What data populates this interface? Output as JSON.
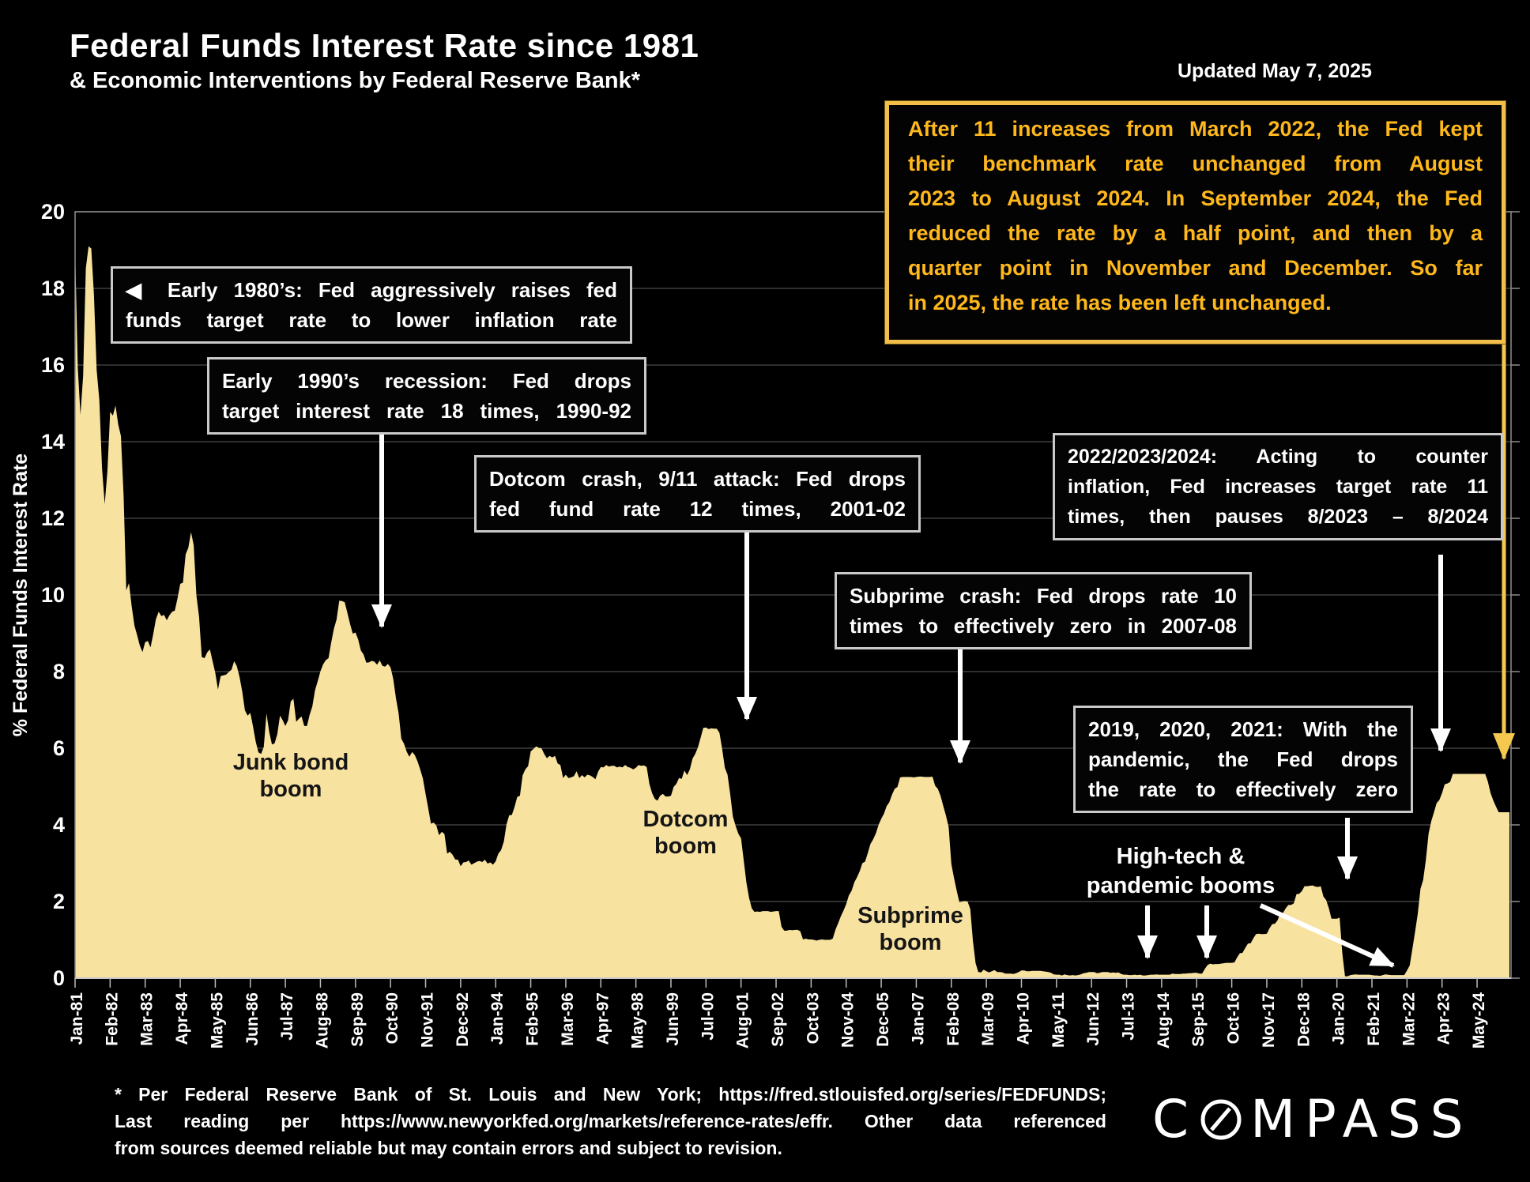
{
  "header": {
    "title": "Federal Funds Interest Rate since 1981",
    "subtitle": "& Economic Interventions by Federal Reserve Bank*",
    "updated": "Updated May 7, 2025"
  },
  "callout": {
    "lines": [
      "After 11 increases from March 2022, the Fed kept",
      "their benchmark rate unchanged from August",
      "2023 to August 2024. In September 2024, the Fed",
      "reduced the rate by a half point, and then by a",
      "quarter point in November and December. So far",
      "in 2025, the rate has been left unchanged."
    ],
    "text_color": "#FFB81C",
    "border_color": "#F2C04A"
  },
  "boxes": [
    {
      "id": "early-1980s",
      "lines": [
        "◀ Early 1980’s: Fed aggressively raises fed",
        "funds target rate to lower inflation rate"
      ]
    },
    {
      "id": "early-1990s",
      "lines": [
        "Early 1990’s recession: Fed drops",
        "target interest rate 18 times, 1990-92"
      ]
    },
    {
      "id": "dotcom-crash",
      "lines": [
        "Dotcom crash, 9/11 attack: Fed drops",
        "fed fund rate 12 times, 2001-02"
      ]
    },
    {
      "id": "subprime-crash",
      "lines": [
        "Subprime crash: Fed drops rate 10",
        "times to effectively zero in 2007-08"
      ]
    },
    {
      "id": "2022-2024-hikes",
      "lines": [
        "2022/2023/2024: Acting to counter",
        "inflation, Fed increases target rate 11",
        "times, then pauses 8/2023 – 8/2024"
      ]
    },
    {
      "id": "pandemic-zero",
      "lines": [
        "2019, 2020, 2021: With the",
        "pandemic, the Fed drops",
        "the rate to effectively zero"
      ]
    }
  ],
  "labels": {
    "junk": [
      "Junk bond",
      "boom"
    ],
    "dotcom": [
      "Dotcom",
      "boom"
    ],
    "subprime": [
      "Subprime",
      "boom"
    ],
    "hightech": [
      "High-tech &",
      "pandemic booms"
    ]
  },
  "footer": {
    "lines": [
      "* Per Federal Reserve Bank of St. Louis and New York; https://fred.stlouisfed.org/series/FEDFUNDS;",
      "Last reading per https://www.newyorkfed.org/markets/reference-rates/effr. Other data referenced",
      "from sources deemed reliable but may contain errors and subject to revision."
    ]
  },
  "logo_text": {
    "c": "C",
    "rest": "MPASS"
  },
  "chart_data": {
    "type": "area",
    "title": "Federal Funds Interest Rate since 1981",
    "ylabel": "% Federal Funds Interest Rate",
    "ylim": [
      0,
      20
    ],
    "ytick_step": 2,
    "grid": "horizontal",
    "legend": "none",
    "x_start": "1981-01",
    "x_end": "2025-05",
    "xtick_labels": [
      "Jan-81",
      "Feb-82",
      "Mar-83",
      "Apr-84",
      "May-85",
      "Jun-86",
      "Jul-87",
      "Aug-88",
      "Sep-89",
      "Oct-90",
      "Nov-91",
      "Dec-92",
      "Jan-94",
      "Feb-95",
      "Mar-96",
      "Apr-97",
      "May-98",
      "Jun-99",
      "Jul-00",
      "Aug-01",
      "Sep-02",
      "Oct-03",
      "Nov-04",
      "Dec-05",
      "Jan-07",
      "Feb-08",
      "Mar-09",
      "Apr-10",
      "May-11",
      "Jun-12",
      "Jul-13",
      "Aug-14",
      "Sep-15",
      "Oct-16",
      "Nov-17",
      "Dec-18",
      "Jan-20",
      "Feb-21",
      "Mar-22",
      "Apr-23",
      "May-24"
    ],
    "colors": {
      "area": "#F8E2A0",
      "background": "#000000",
      "gridline": "#3f3f3f"
    },
    "series": [
      {
        "name": "Federal Funds Effective Rate (monthly, %)",
        "monthly_by_year": {
          "1981": [
            19.08,
            15.93,
            14.7,
            15.72,
            18.52,
            19.1,
            19.04,
            17.82,
            15.87,
            15.08,
            13.31,
            12.37
          ],
          "1982": [
            13.22,
            14.78,
            14.68,
            14.94,
            14.45,
            14.15,
            12.59,
            10.12,
            10.31,
            9.71,
            9.2,
            8.95
          ],
          "1983": [
            8.68,
            8.51,
            8.77,
            8.8,
            8.63,
            8.98,
            9.37,
            9.56,
            9.45,
            9.48,
            9.34,
            9.47
          ],
          "1984": [
            9.56,
            9.59,
            9.91,
            10.29,
            10.32,
            11.06,
            11.23,
            11.64,
            11.3,
            9.99,
            9.43,
            8.38
          ],
          "1985": [
            8.35,
            8.5,
            8.58,
            8.27,
            7.97,
            7.53,
            7.88,
            7.9,
            7.92,
            7.99,
            8.05,
            8.27
          ],
          "1986": [
            8.14,
            7.86,
            7.48,
            6.99,
            6.85,
            6.92,
            6.56,
            6.17,
            5.89,
            5.85,
            6.04,
            6.91
          ],
          "1987": [
            6.43,
            6.1,
            6.13,
            6.37,
            6.85,
            6.73,
            6.58,
            6.73,
            7.22,
            7.29,
            6.69,
            6.77
          ],
          "1988": [
            6.83,
            6.58,
            6.58,
            6.87,
            7.09,
            7.51,
            7.75,
            8.01,
            8.19,
            8.3,
            8.35,
            8.76
          ],
          "1989": [
            9.12,
            9.36,
            9.85,
            9.84,
            9.81,
            9.53,
            9.24,
            8.99,
            9.02,
            8.84,
            8.55,
            8.45
          ],
          "1990": [
            8.23,
            8.24,
            8.28,
            8.26,
            8.18,
            8.29,
            8.15,
            8.13,
            8.2,
            8.11,
            7.81,
            7.31
          ],
          "1991": [
            6.91,
            6.25,
            6.12,
            5.91,
            5.78,
            5.9,
            5.82,
            5.66,
            5.45,
            5.21,
            4.81,
            4.43
          ],
          "1992": [
            4.03,
            4.06,
            3.98,
            3.73,
            3.82,
            3.76,
            3.25,
            3.3,
            3.22,
            3.1,
            3.09,
            2.92
          ],
          "1993": [
            3.02,
            3.03,
            3.07,
            2.96,
            3.0,
            3.04,
            3.06,
            3.03,
            3.09,
            2.99,
            3.02,
            2.96
          ],
          "1994": [
            3.05,
            3.25,
            3.34,
            3.56,
            4.01,
            4.25,
            4.26,
            4.47,
            4.73,
            4.76,
            5.29,
            5.45
          ],
          "1995": [
            5.53,
            5.92,
            5.98,
            6.05,
            6.01,
            6.0,
            5.85,
            5.74,
            5.8,
            5.76,
            5.8,
            5.6
          ],
          "1996": [
            5.56,
            5.22,
            5.31,
            5.22,
            5.24,
            5.27,
            5.4,
            5.22,
            5.3,
            5.24,
            5.31,
            5.29
          ],
          "1997": [
            5.25,
            5.19,
            5.39,
            5.51,
            5.5,
            5.56,
            5.52,
            5.54,
            5.54,
            5.5,
            5.52,
            5.5
          ],
          "1998": [
            5.56,
            5.51,
            5.49,
            5.45,
            5.49,
            5.56,
            5.54,
            5.55,
            5.51,
            5.07,
            4.83,
            4.68
          ],
          "1999": [
            4.63,
            4.76,
            4.81,
            4.74,
            4.74,
            4.76,
            4.99,
            5.07,
            5.22,
            5.2,
            5.42,
            5.3
          ],
          "2000": [
            5.45,
            5.73,
            5.85,
            6.02,
            6.27,
            6.53,
            6.54,
            6.5,
            6.52,
            6.51,
            6.51,
            6.4
          ],
          "2001": [
            5.98,
            5.49,
            5.31,
            4.8,
            4.21,
            3.97,
            3.77,
            3.65,
            3.07,
            2.49,
            2.09,
            1.82
          ],
          "2002": [
            1.73,
            1.74,
            1.73,
            1.75,
            1.75,
            1.75,
            1.73,
            1.74,
            1.75,
            1.75,
            1.34,
            1.24
          ],
          "2003": [
            1.24,
            1.26,
            1.25,
            1.26,
            1.26,
            1.22,
            1.01,
            1.03,
            1.01,
            1.01,
            1.0,
            0.98
          ],
          "2004": [
            1.0,
            1.01,
            1.0,
            1.0,
            1.0,
            1.03,
            1.26,
            1.43,
            1.61,
            1.76,
            1.93,
            2.16
          ],
          "2005": [
            2.28,
            2.5,
            2.63,
            2.79,
            3.0,
            3.04,
            3.26,
            3.5,
            3.62,
            3.78,
            4.0,
            4.16
          ],
          "2006": [
            4.29,
            4.49,
            4.59,
            4.79,
            4.94,
            4.99,
            5.24,
            5.25,
            5.25,
            5.25,
            5.25,
            5.24
          ],
          "2007": [
            5.25,
            5.26,
            5.26,
            5.25,
            5.25,
            5.25,
            5.26,
            5.02,
            4.94,
            4.76,
            4.49,
            4.24
          ],
          "2008": [
            3.94,
            2.98,
            2.61,
            2.28,
            1.98,
            2.0,
            2.01,
            2.0,
            1.81,
            0.97,
            0.39,
            0.16
          ],
          "2009": [
            0.15,
            0.22,
            0.18,
            0.15,
            0.18,
            0.21,
            0.16,
            0.16,
            0.15,
            0.12,
            0.12,
            0.12
          ],
          "2010": [
            0.11,
            0.13,
            0.16,
            0.2,
            0.2,
            0.18,
            0.18,
            0.19,
            0.19,
            0.19,
            0.19,
            0.18
          ],
          "2011": [
            0.17,
            0.16,
            0.14,
            0.1,
            0.09,
            0.09,
            0.07,
            0.1,
            0.08,
            0.07,
            0.08,
            0.07
          ],
          "2012": [
            0.08,
            0.1,
            0.13,
            0.14,
            0.16,
            0.16,
            0.16,
            0.13,
            0.14,
            0.16,
            0.16,
            0.16
          ],
          "2013": [
            0.14,
            0.15,
            0.14,
            0.15,
            0.11,
            0.09,
            0.09,
            0.08,
            0.08,
            0.09,
            0.08,
            0.09
          ],
          "2014": [
            0.07,
            0.07,
            0.08,
            0.09,
            0.09,
            0.1,
            0.09,
            0.09,
            0.09,
            0.09,
            0.09,
            0.12
          ],
          "2015": [
            0.11,
            0.11,
            0.11,
            0.12,
            0.12,
            0.13,
            0.13,
            0.14,
            0.14,
            0.12,
            0.12,
            0.24
          ],
          "2016": [
            0.34,
            0.38,
            0.36,
            0.37,
            0.37,
            0.38,
            0.39,
            0.4,
            0.4,
            0.4,
            0.41,
            0.54
          ],
          "2017": [
            0.65,
            0.66,
            0.79,
            0.9,
            0.91,
            1.04,
            1.15,
            1.16,
            1.15,
            1.15,
            1.16,
            1.3
          ],
          "2018": [
            1.41,
            1.42,
            1.51,
            1.69,
            1.7,
            1.82,
            1.91,
            1.91,
            1.95,
            2.19,
            2.2,
            2.27
          ],
          "2019": [
            2.4,
            2.4,
            2.41,
            2.42,
            2.39,
            2.38,
            2.4,
            2.13,
            2.04,
            1.83,
            1.55,
            1.55
          ],
          "2020": [
            1.55,
            1.58,
            0.65,
            0.05,
            0.05,
            0.08,
            0.09,
            0.1,
            0.09,
            0.09,
            0.09,
            0.09
          ],
          "2021": [
            0.09,
            0.08,
            0.07,
            0.07,
            0.06,
            0.08,
            0.1,
            0.09,
            0.08,
            0.08,
            0.08,
            0.08
          ],
          "2022": [
            0.08,
            0.08,
            0.2,
            0.33,
            0.77,
            1.21,
            1.68,
            2.33,
            2.56,
            3.08,
            3.78,
            4.1
          ],
          "2023": [
            4.33,
            4.57,
            4.65,
            4.83,
            5.06,
            5.08,
            5.12,
            5.33,
            5.33,
            5.33,
            5.33,
            5.33
          ],
          "2024": [
            5.33,
            5.33,
            5.33,
            5.33,
            5.33,
            5.33,
            5.33,
            5.33,
            5.13,
            4.83,
            4.64,
            4.48
          ],
          "2025": [
            4.33,
            4.33,
            4.33,
            4.33,
            4.33
          ]
        }
      }
    ]
  }
}
